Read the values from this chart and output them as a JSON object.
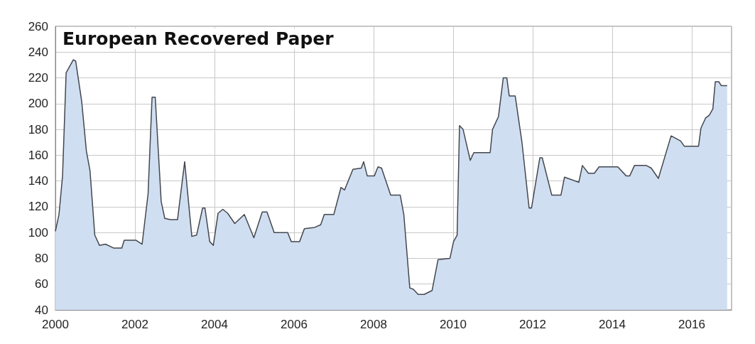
{
  "chart_data": {
    "type": "area",
    "title": "European Recovered Paper",
    "x": [
      2000.0,
      2000.09,
      2000.18,
      2000.27,
      2000.45,
      2000.51,
      2000.66,
      2000.78,
      2000.87,
      2000.99,
      2001.11,
      2001.26,
      2001.46,
      2001.67,
      2001.73,
      2002.03,
      2002.18,
      2002.33,
      2002.43,
      2002.51,
      2002.66,
      2002.75,
      2002.89,
      2003.07,
      2003.25,
      2003.43,
      2003.55,
      2003.7,
      2003.76,
      2003.88,
      2003.97,
      2004.09,
      2004.21,
      2004.33,
      2004.51,
      2004.75,
      2004.99,
      2005.2,
      2005.32,
      2005.5,
      2005.84,
      2005.93,
      2006.14,
      2006.26,
      2006.52,
      2006.67,
      2006.76,
      2007.0,
      2007.18,
      2007.27,
      2007.48,
      2007.69,
      2007.75,
      2007.84,
      2008.02,
      2008.11,
      2008.2,
      2008.43,
      2008.67,
      2008.76,
      2008.91,
      2009.0,
      2009.12,
      2009.27,
      2009.47,
      2009.62,
      2009.92,
      2010.01,
      2010.1,
      2010.16,
      2010.25,
      2010.43,
      2010.52,
      2010.93,
      2010.99,
      2011.14,
      2011.26,
      2011.35,
      2011.41,
      2011.56,
      2011.73,
      2011.91,
      2011.97,
      2012.18,
      2012.24,
      2012.48,
      2012.71,
      2012.8,
      2013.16,
      2013.25,
      2013.4,
      2013.55,
      2013.67,
      2014.14,
      2014.35,
      2014.44,
      2014.56,
      2014.86,
      2014.98,
      2015.16,
      2015.48,
      2015.72,
      2015.81,
      2016.17,
      2016.23,
      2016.35,
      2016.44,
      2016.53,
      2016.59,
      2016.68,
      2016.74,
      2016.89
    ],
    "series": [
      {
        "color": "#d0def2",
        "values": [
          101,
          114,
          144,
          224,
          234,
          233,
          202,
          163,
          148,
          98,
          90,
          91,
          88,
          88,
          94,
          94,
          91,
          130,
          205,
          205,
          124,
          111,
          110,
          110,
          155,
          97,
          98,
          119,
          119,
          93,
          90,
          115,
          118,
          115,
          107,
          114,
          96,
          116,
          116,
          100,
          100,
          93,
          93,
          103,
          104,
          106,
          114,
          114,
          135,
          133,
          149,
          150,
          155,
          144,
          144,
          151,
          150,
          129,
          129,
          114,
          57,
          56,
          52,
          52,
          55,
          79,
          80,
          93,
          98,
          183,
          180,
          156,
          162,
          162,
          180,
          190,
          220,
          220,
          206,
          206,
          170,
          119,
          119,
          158,
          158,
          129,
          129,
          143,
          139,
          152,
          146,
          146,
          151,
          151,
          144,
          144,
          152,
          152,
          150,
          142,
          175,
          171,
          167,
          167,
          181,
          189,
          191,
          196,
          217,
          217,
          214,
          214
        ]
      }
    ],
    "xlim": [
      2000,
      2017
    ],
    "xticks": [
      2000,
      2002,
      2004,
      2006,
      2008,
      2010,
      2012,
      2014,
      2016
    ],
    "ylim": [
      40,
      260
    ],
    "yticks": [
      40,
      60,
      80,
      100,
      120,
      140,
      160,
      180,
      200,
      220,
      240,
      260
    ],
    "grid": true,
    "marker": "none",
    "line_style": "solid"
  }
}
